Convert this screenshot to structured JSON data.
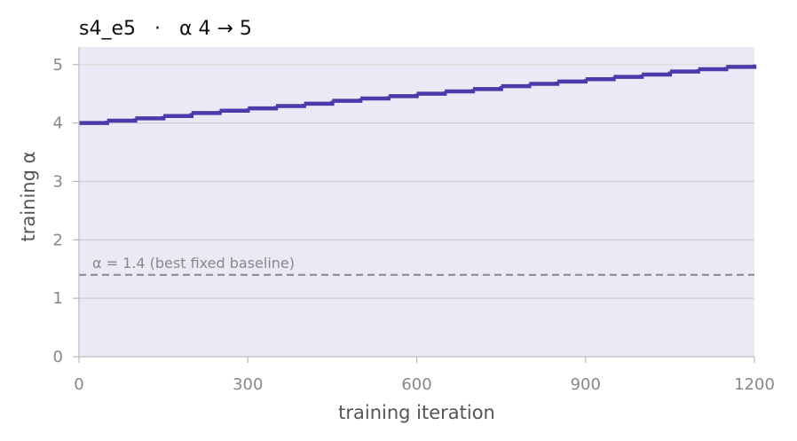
{
  "chart_data": {
    "type": "line",
    "title": "s4_e5   ·   α 4 → 5",
    "xlabel": "training iteration",
    "ylabel": "training α",
    "xlim": [
      0,
      1200
    ],
    "ylim": [
      0,
      5.3
    ],
    "xticks": [
      0,
      300,
      600,
      900,
      1200
    ],
    "yticks": [
      0,
      1,
      2,
      3,
      4,
      5
    ],
    "grid": "horizontal",
    "step": "post",
    "fill_under": true,
    "series": [
      {
        "x": [
          0,
          50,
          100,
          150,
          200,
          250,
          300,
          350,
          400,
          450,
          500,
          550,
          600,
          650,
          700,
          750,
          800,
          850,
          900,
          950,
          1000,
          1050,
          1100,
          1150,
          1200
        ],
        "values": [
          4.0,
          4.04,
          4.08,
          4.12,
          4.17,
          4.21,
          4.25,
          4.29,
          4.33,
          4.38,
          4.42,
          4.46,
          4.5,
          4.54,
          4.58,
          4.63,
          4.67,
          4.71,
          4.75,
          4.79,
          4.83,
          4.88,
          4.92,
          4.96,
          5.0
        ]
      }
    ],
    "reference_line": {
      "y": 1.4,
      "label": "α = 1.4 (best fixed baseline)"
    },
    "colors": {
      "line": "#4a3aaa",
      "fill": "#ebe9f6",
      "reference": "#888888",
      "grid": "#d0d0d0",
      "axis": "#bbbbbb"
    }
  }
}
